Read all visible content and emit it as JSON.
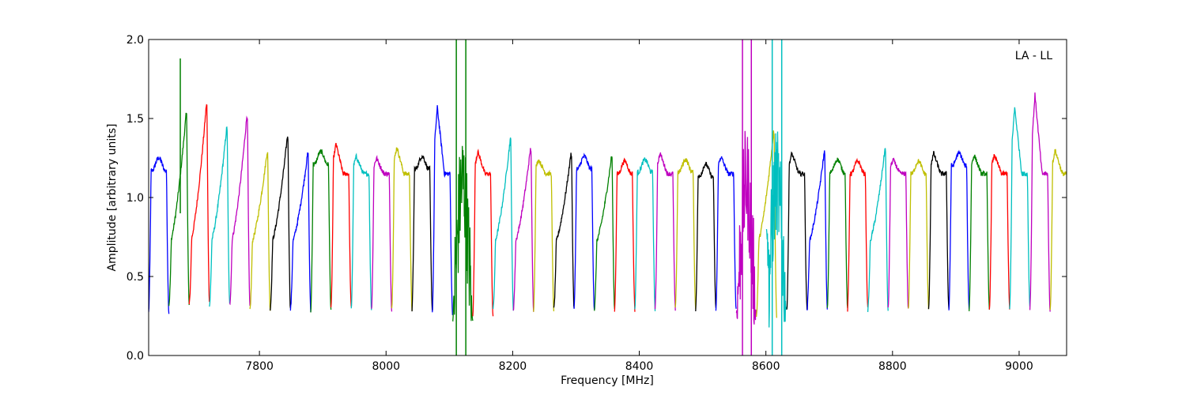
{
  "chart_data": {
    "type": "line",
    "title": "",
    "annotation": "LA - LL",
    "xlabel": "Frequency [MHz]",
    "ylabel": "Amplitude [arbitrary units]",
    "xlim": [
      7625,
      9075
    ],
    "ylim": [
      0,
      2.0
    ],
    "xticks": [
      7800,
      8000,
      8200,
      8400,
      8600,
      8800,
      9000
    ],
    "yticks": [
      0.0,
      0.5,
      1.0,
      1.5,
      2.0
    ],
    "ytick_labels": [
      "0.0",
      "0.5",
      "1.0",
      "1.5",
      "2.0"
    ],
    "grid": false,
    "legend": "none",
    "spectral_windows": [
      {
        "start": 7625,
        "end": 7657,
        "color": "#0000ff",
        "shape": "flat",
        "peak": 1.21,
        "edge_low": 0.27,
        "edge_high": 0.27
      },
      {
        "start": 7657,
        "end": 7689,
        "color": "#008000",
        "shape": "rise",
        "peak": 1.53,
        "edge_low": 0.32,
        "edge_high": 0.32,
        "spike": {
          "x": 7675,
          "y": 1.88
        }
      },
      {
        "start": 7689,
        "end": 7721,
        "color": "#ff0000",
        "shape": "rise",
        "peak": 1.59,
        "edge_low": 0.32,
        "edge_high": 0.35
      },
      {
        "start": 7721,
        "end": 7753,
        "color": "#00bfbf",
        "shape": "rise",
        "peak": 1.44,
        "edge_low": 0.31,
        "edge_high": 0.32
      },
      {
        "start": 7753,
        "end": 7785,
        "color": "#bf00bf",
        "shape": "rise",
        "peak": 1.52,
        "edge_low": 0.32,
        "edge_high": 0.3
      },
      {
        "start": 7785,
        "end": 7817,
        "color": "#bfbf00",
        "shape": "rise",
        "peak": 1.29,
        "edge_low": 0.29,
        "edge_high": 0.29
      },
      {
        "start": 7817,
        "end": 7849,
        "color": "#000000",
        "shape": "rise",
        "peak": 1.39,
        "edge_low": 0.29,
        "edge_high": 0.29
      },
      {
        "start": 7849,
        "end": 7881,
        "color": "#0000ff",
        "shape": "rise",
        "peak": 1.28,
        "edge_low": 0.29,
        "edge_high": 0.28
      },
      {
        "start": 7881,
        "end": 7913,
        "color": "#008000",
        "shape": "flat",
        "peak": 1.25,
        "edge_low": 0.27,
        "edge_high": 0.29
      },
      {
        "start": 7913,
        "end": 7945,
        "color": "#ff0000",
        "shape": "peakleft",
        "peak": 1.34,
        "edge_low": 0.29,
        "edge_high": 0.3
      },
      {
        "start": 7945,
        "end": 7977,
        "color": "#00bfbf",
        "shape": "peakleft",
        "peak": 1.26,
        "edge_low": 0.29,
        "edge_high": 0.29
      },
      {
        "start": 7977,
        "end": 8009,
        "color": "#bf00bf",
        "shape": "peakleft",
        "peak": 1.25,
        "edge_low": 0.29,
        "edge_high": 0.29
      },
      {
        "start": 8009,
        "end": 8041,
        "color": "#bfbf00",
        "shape": "peakleft",
        "peak": 1.32,
        "edge_low": 0.3,
        "edge_high": 0.29
      },
      {
        "start": 8041,
        "end": 8073,
        "color": "#000000",
        "shape": "flat",
        "peak": 1.22,
        "edge_low": 0.29,
        "edge_high": 0.29
      },
      {
        "start": 8073,
        "end": 8105,
        "color": "#0000ff",
        "shape": "peakleft",
        "peak": 1.57,
        "edge_low": 0.27,
        "edge_high": 0.27
      },
      {
        "start": 8105,
        "end": 8137,
        "color": "#008000",
        "shape": "noisy",
        "peak": 1.15,
        "edge_low": 0.22,
        "edge_high": 0.22,
        "min": 0.2,
        "spikes": [
          8111,
          8126
        ]
      },
      {
        "start": 8137,
        "end": 8169,
        "color": "#ff0000",
        "shape": "peakleft",
        "peak": 1.29,
        "edge_low": 0.26,
        "edge_high": 0.25
      },
      {
        "start": 8169,
        "end": 8201,
        "color": "#00bfbf",
        "shape": "rise",
        "peak": 1.37,
        "edge_low": 0.29,
        "edge_high": 0.29
      },
      {
        "start": 8201,
        "end": 8233,
        "color": "#bf00bf",
        "shape": "rise",
        "peak": 1.31,
        "edge_low": 0.29,
        "edge_high": 0.29
      },
      {
        "start": 8233,
        "end": 8265,
        "color": "#bfbf00",
        "shape": "peakleft",
        "peak": 1.24,
        "edge_low": 0.29,
        "edge_high": 0.29
      },
      {
        "start": 8265,
        "end": 8297,
        "color": "#000000",
        "shape": "rise",
        "peak": 1.28,
        "edge_low": 0.29,
        "edge_high": 0.29
      },
      {
        "start": 8297,
        "end": 8329,
        "color": "#0000ff",
        "shape": "flat",
        "peak": 1.22,
        "edge_low": 0.29,
        "edge_high": 0.29
      },
      {
        "start": 8329,
        "end": 8361,
        "color": "#008000",
        "shape": "rise",
        "peak": 1.26,
        "edge_low": 0.29,
        "edge_high": 0.29
      },
      {
        "start": 8361,
        "end": 8393,
        "color": "#ff0000",
        "shape": "flat",
        "peak": 1.19,
        "edge_low": 0.29,
        "edge_high": 0.29
      },
      {
        "start": 8393,
        "end": 8425,
        "color": "#00bfbf",
        "shape": "flat",
        "peak": 1.2,
        "edge_low": 0.29,
        "edge_high": 0.29
      },
      {
        "start": 8425,
        "end": 8457,
        "color": "#bf00bf",
        "shape": "peakleft",
        "peak": 1.28,
        "edge_low": 0.29,
        "edge_high": 0.29
      },
      {
        "start": 8457,
        "end": 8489,
        "color": "#bfbf00",
        "shape": "flat",
        "peak": 1.2,
        "edge_low": 0.29,
        "edge_high": 0.29
      },
      {
        "start": 8489,
        "end": 8521,
        "color": "#000000",
        "shape": "flat",
        "peak": 1.17,
        "edge_low": 0.29,
        "edge_high": 0.29
      },
      {
        "start": 8521,
        "end": 8553,
        "color": "#0000ff",
        "shape": "peakleft",
        "peak": 1.26,
        "edge_low": 0.29,
        "edge_high": 0.29
      },
      {
        "start": 8553,
        "end": 8585,
        "color": "#bf00bf",
        "shape": "noisy",
        "peak": 1.15,
        "edge_low": 0.27,
        "edge_high": 0.26,
        "min": 0.1,
        "spikes": [
          8563,
          8577
        ]
      },
      {
        "start": 8585,
        "end": 8617,
        "color": "#bfbf00",
        "shape": "rise",
        "peak": 1.42,
        "edge_low": 0.25,
        "edge_high": 0.25
      },
      {
        "start": 8601,
        "end": 8633,
        "color": "#00bfbf",
        "shape": "noisy",
        "peak": 1.6,
        "edge_low": 0.8,
        "edge_high": 0.3,
        "min": 0.05,
        "spikes": [
          8610,
          8625
        ]
      },
      {
        "start": 8633,
        "end": 8665,
        "color": "#000000",
        "shape": "peakleft",
        "peak": 1.28,
        "edge_low": 0.29,
        "edge_high": 0.29
      },
      {
        "start": 8665,
        "end": 8697,
        "color": "#0000ff",
        "shape": "rise",
        "peak": 1.29,
        "edge_low": 0.29,
        "edge_high": 0.29
      },
      {
        "start": 8697,
        "end": 8729,
        "color": "#008000",
        "shape": "flat",
        "peak": 1.2,
        "edge_low": 0.29,
        "edge_high": 0.29
      },
      {
        "start": 8729,
        "end": 8761,
        "color": "#ff0000",
        "shape": "flat",
        "peak": 1.19,
        "edge_low": 0.29,
        "edge_high": 0.29
      },
      {
        "start": 8761,
        "end": 8793,
        "color": "#00bfbf",
        "shape": "rise",
        "peak": 1.31,
        "edge_low": 0.29,
        "edge_high": 0.29
      },
      {
        "start": 8793,
        "end": 8825,
        "color": "#bf00bf",
        "shape": "peakleft",
        "peak": 1.24,
        "edge_low": 0.29,
        "edge_high": 0.29
      },
      {
        "start": 8825,
        "end": 8857,
        "color": "#bfbf00",
        "shape": "flat",
        "peak": 1.19,
        "edge_low": 0.29,
        "edge_high": 0.29
      },
      {
        "start": 8857,
        "end": 8889,
        "color": "#000000",
        "shape": "peakleft",
        "peak": 1.28,
        "edge_low": 0.29,
        "edge_high": 0.29
      },
      {
        "start": 8889,
        "end": 8921,
        "color": "#0000ff",
        "shape": "flat",
        "peak": 1.24,
        "edge_low": 0.29,
        "edge_high": 0.29
      },
      {
        "start": 8921,
        "end": 8953,
        "color": "#008000",
        "shape": "peakleft",
        "peak": 1.27,
        "edge_low": 0.29,
        "edge_high": 0.29
      },
      {
        "start": 8953,
        "end": 8985,
        "color": "#ff0000",
        "shape": "peakleft",
        "peak": 1.27,
        "edge_low": 0.29,
        "edge_high": 0.3
      },
      {
        "start": 8985,
        "end": 9017,
        "color": "#00bfbf",
        "shape": "peakleft",
        "peak": 1.57,
        "edge_low": 0.29,
        "edge_high": 0.31
      },
      {
        "start": 9017,
        "end": 9049,
        "color": "#bf00bf",
        "shape": "peakleft",
        "peak": 1.65,
        "edge_low": 0.3,
        "edge_high": 0.28
      },
      {
        "start": 9049,
        "end": 9081,
        "color": "#bfbf00",
        "shape": "peakleft",
        "peak": 1.3,
        "edge_low": 0.28,
        "edge_high": 0.29
      }
    ]
  }
}
